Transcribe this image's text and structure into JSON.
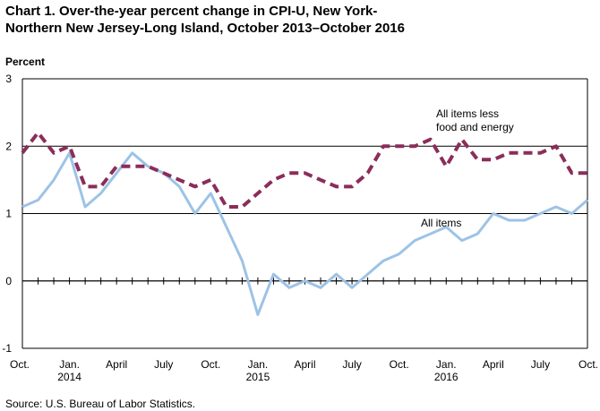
{
  "title_line1": "Chart 1.  Over-the-year percent change in CPI-U, New York-",
  "title_line2": "Northern New Jersey-Long Island, October 2013–October 2016",
  "source": "Source: U.S. Bureau of Labor Statistics.",
  "chart_data": {
    "type": "line",
    "ylabel": "Percent",
    "ylim": [
      -1,
      3
    ],
    "yticks": [
      -1,
      0,
      1,
      2,
      3
    ],
    "grid": true,
    "x": [
      "Oct 2013",
      "Nov 2013",
      "Dec 2013",
      "Jan 2014",
      "Feb 2014",
      "Mar 2014",
      "Apr 2014",
      "May 2014",
      "Jun 2014",
      "Jul 2014",
      "Aug 2014",
      "Sep 2014",
      "Oct 2014",
      "Nov 2014",
      "Dec 2014",
      "Jan 2015",
      "Feb 2015",
      "Mar 2015",
      "Apr 2015",
      "May 2015",
      "Jun 2015",
      "Jul 2015",
      "Aug 2015",
      "Sep 2015",
      "Oct 2015",
      "Nov 2015",
      "Dec 2015",
      "Jan 2016",
      "Feb 2016",
      "Mar 2016",
      "Apr 2016",
      "May 2016",
      "Jun 2016",
      "Jul 2016",
      "Aug 2016",
      "Sep 2016",
      "Oct 2016"
    ],
    "xtick_labels": [
      {
        "index": 0,
        "lines": [
          "Oct."
        ]
      },
      {
        "index": 3,
        "lines": [
          "Jan.",
          "2014"
        ]
      },
      {
        "index": 6,
        "lines": [
          "April"
        ]
      },
      {
        "index": 9,
        "lines": [
          "July"
        ]
      },
      {
        "index": 12,
        "lines": [
          "Oct."
        ]
      },
      {
        "index": 15,
        "lines": [
          "Jan.",
          "2015"
        ]
      },
      {
        "index": 18,
        "lines": [
          "April"
        ]
      },
      {
        "index": 21,
        "lines": [
          "July"
        ]
      },
      {
        "index": 24,
        "lines": [
          "Oct."
        ]
      },
      {
        "index": 27,
        "lines": [
          "Jan.",
          "2016"
        ]
      },
      {
        "index": 30,
        "lines": [
          "April"
        ]
      },
      {
        "index": 33,
        "lines": [
          "July"
        ]
      },
      {
        "index": 36,
        "lines": [
          "Oct."
        ]
      }
    ],
    "series": [
      {
        "name": "All items",
        "color": "#9dc3e6",
        "style": "solid",
        "label_lines": [
          "All items"
        ],
        "values": [
          1.1,
          1.2,
          1.5,
          1.9,
          1.1,
          1.3,
          1.6,
          1.9,
          1.7,
          1.6,
          1.4,
          1.0,
          1.3,
          0.8,
          0.3,
          -0.5,
          0.1,
          -0.1,
          0.0,
          -0.1,
          0.1,
          -0.1,
          0.1,
          0.3,
          0.4,
          0.6,
          0.7,
          0.8,
          0.6,
          0.7,
          1.0,
          0.9,
          0.9,
          1.0,
          1.1,
          1.0,
          1.2
        ]
      },
      {
        "name": "All items less food and energy",
        "color": "#8b2d5a",
        "style": "dashed",
        "label_lines": [
          "All items less",
          "food and energy"
        ],
        "values": [
          1.9,
          2.2,
          1.9,
          2.0,
          1.4,
          1.4,
          1.7,
          1.7,
          1.7,
          1.6,
          1.5,
          1.4,
          1.5,
          1.1,
          1.1,
          1.3,
          1.5,
          1.6,
          1.6,
          1.5,
          1.4,
          1.4,
          1.6,
          2.0,
          2.0,
          2.0,
          2.1,
          1.7,
          2.1,
          1.8,
          1.8,
          1.9,
          1.9,
          1.9,
          2.0,
          1.6,
          1.6
        ]
      }
    ]
  }
}
